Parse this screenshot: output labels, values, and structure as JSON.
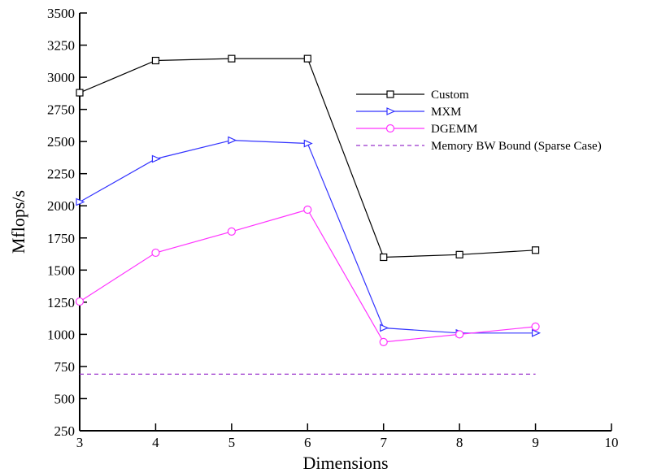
{
  "chart_data": {
    "type": "line",
    "title": "",
    "xlabel": "Dimensions",
    "ylabel": "Mflops/s",
    "xlim": [
      3,
      10
    ],
    "ylim": [
      250,
      3500
    ],
    "x_ticks": [
      3,
      4,
      5,
      6,
      7,
      8,
      9,
      10
    ],
    "y_ticks": [
      250,
      500,
      750,
      1000,
      1250,
      1500,
      1750,
      2000,
      2250,
      2500,
      2750,
      3000,
      3250,
      3500
    ],
    "grid": false,
    "legend_position": "right",
    "x": [
      3,
      4,
      5,
      6,
      7,
      8,
      9
    ],
    "series": [
      {
        "name": "Custom",
        "values": [
          2880,
          3130,
          3145,
          3145,
          1600,
          1620,
          1655
        ],
        "color": "#000000",
        "marker": "square",
        "dashed": false
      },
      {
        "name": "MXM",
        "values": [
          2030,
          2365,
          2510,
          2485,
          1050,
          1010,
          1010
        ],
        "color": "#3333ff",
        "marker": "triangle-right",
        "dashed": false
      },
      {
        "name": "DGEMM",
        "values": [
          1255,
          1635,
          1800,
          1970,
          940,
          1000,
          1060
        ],
        "color": "#ff33ff",
        "marker": "circle",
        "dashed": false
      },
      {
        "name": "Memory BW Bound (Sparse Case)",
        "values": [
          690,
          690,
          690,
          690,
          690,
          690,
          690
        ],
        "color": "#9933cc",
        "marker": "none",
        "dashed": true
      }
    ]
  }
}
